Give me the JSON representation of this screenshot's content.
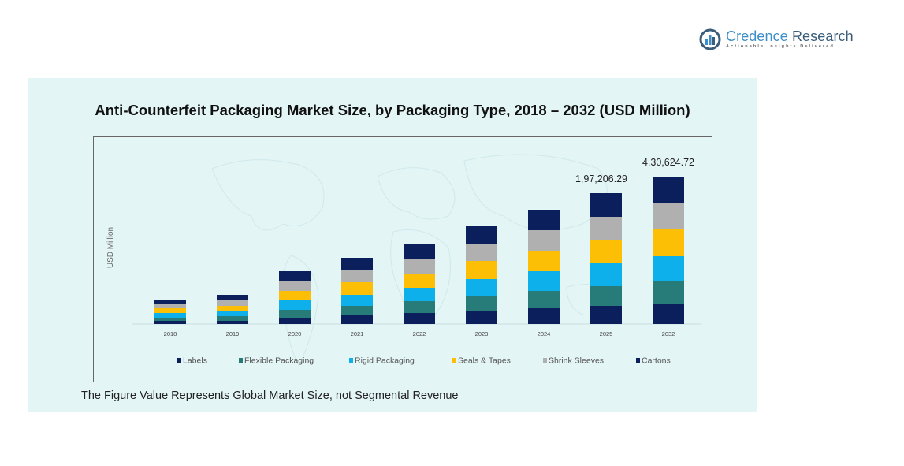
{
  "brand": {
    "name_part1": "Credence",
    "name_part2": " Research",
    "tagline": "Actionable Insights Delivered"
  },
  "footnote": "The Figure Value Represents Global Market Size, not Segmental Revenue",
  "chart_data": {
    "type": "bar",
    "stacked": true,
    "title": "Anti-Counterfeit Packaging Market Size, by Packaging Type, 2018 – 2032 (USD Million)",
    "xlabel": "",
    "ylabel": "USD Million",
    "value_note": "Segment values are relative visual heights (no y-axis scale shown); only the two annotated totals are printed values",
    "categories": [
      "2018",
      "2019",
      "2020",
      "2021",
      "2022",
      "2023",
      "2024",
      "2025",
      "2032"
    ],
    "series": [
      {
        "name": "Labels",
        "color": "#0a1f5c",
        "values": [
          4,
          4,
          8,
          11,
          14,
          17,
          20,
          23,
          26
        ]
      },
      {
        "name": "Flexible Packaging",
        "color": "#277b78",
        "values": [
          4,
          6,
          10,
          12,
          15,
          19,
          22,
          25,
          29
        ]
      },
      {
        "name": "Rigid Packaging",
        "color": "#0db0ea",
        "values": [
          6,
          6,
          12,
          14,
          17,
          21,
          25,
          29,
          31
        ]
      },
      {
        "name": "Seals & Tapes",
        "color": "#fdbf06",
        "values": [
          6,
          7,
          12,
          16,
          18,
          23,
          26,
          30,
          34
        ]
      },
      {
        "name": "Shrink Sleeves",
        "color": "#b0b0b0",
        "values": [
          5,
          7,
          13,
          16,
          19,
          22,
          26,
          29,
          34
        ]
      },
      {
        "name": "Cartons",
        "color": "#0a1f5c",
        "values": [
          6,
          7,
          12,
          15,
          18,
          22,
          26,
          30,
          33
        ]
      }
    ],
    "annotations": [
      {
        "category": "2025",
        "label": "1,97,206.29"
      },
      {
        "category": "2032",
        "label": "4,30,624.72"
      }
    ],
    "ylim": [
      0,
      200
    ],
    "grid": false,
    "legend_position": "bottom"
  }
}
